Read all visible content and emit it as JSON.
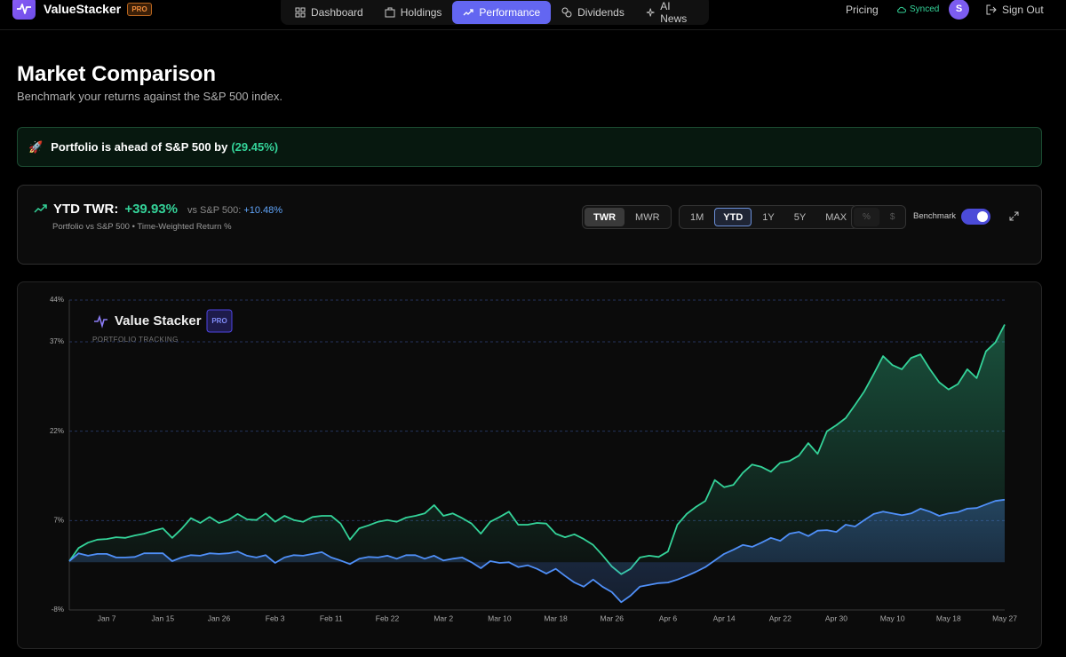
{
  "nav": {
    "brand": "ValueStacker",
    "badge": "PRO",
    "items": [
      "Dashboard",
      "Holdings",
      "Performance",
      "Dividends",
      "AI News"
    ],
    "active": 2,
    "pricing": "Pricing",
    "status": "Synced",
    "avatar": "S",
    "sign_out": "Sign Out"
  },
  "header": {
    "title": "Market Comparison",
    "subtitle": "Benchmark your returns against the S&P 500 index."
  },
  "banner": {
    "icon": "🚀",
    "text": "Portfolio is ahead of S&P 500 by",
    "value": "(29.45%)"
  },
  "summary": {
    "label": "YTD TWR:",
    "value": "+39.93%",
    "compare_label": "vs S&P 500:",
    "compare_value": "+10.48%",
    "caption": "Portfolio vs S&P 500 • Time-Weighted Return %"
  },
  "controls": {
    "method": [
      "TWR",
      "MWR"
    ],
    "method_active": 0,
    "ranges": [
      "1M",
      "YTD",
      "1Y",
      "5Y",
      "MAX"
    ],
    "range_active": 1,
    "units": [
      "%",
      "$"
    ],
    "benchmark": "Benchmark",
    "benchmark_on": true
  },
  "watermark": {
    "title": "Value Stacker",
    "badge": "PRO",
    "subtitle": "PORTFOLIO TRACKING"
  },
  "chart_data": {
    "type": "line",
    "categories": [
      null,
      null,
      null,
      null,
      "Jan 7",
      null,
      null,
      null,
      null,
      null,
      "Jan 15",
      null,
      null,
      null,
      null,
      null,
      "Jan 26",
      null,
      null,
      null,
      null,
      null,
      "Feb 3",
      null,
      null,
      null,
      null,
      null,
      "Feb 11",
      null,
      null,
      null,
      null,
      null,
      "Feb 22",
      null,
      null,
      null,
      null,
      null,
      "Mar 2",
      null,
      null,
      null,
      null,
      null,
      "Mar 10",
      null,
      null,
      null,
      null,
      null,
      "Mar 18",
      null,
      null,
      null,
      null,
      null,
      "Mar 26",
      null,
      null,
      null,
      null,
      null,
      "Apr 6",
      null,
      null,
      null,
      null,
      null,
      "Apr 14",
      null,
      null,
      null,
      null,
      null,
      "Apr 22",
      null,
      null,
      null,
      null,
      null,
      "Apr 30",
      null,
      null,
      null,
      null,
      null,
      "May 10",
      null,
      null,
      null,
      null,
      null,
      "May 18",
      null,
      null,
      null,
      null,
      null,
      "May 27"
    ],
    "series": [
      {
        "color": "#34d399",
        "values": [
          0.2,
          2.4,
          3.3,
          3.8,
          3.9,
          4.2,
          4.1,
          4.5,
          4.8,
          5.3,
          5.7,
          4.1,
          5.6,
          7.4,
          6.6,
          7.6,
          6.6,
          7.1,
          8.1,
          7.2,
          7.1,
          8.2,
          6.8,
          7.8,
          7.1,
          6.8,
          7.6,
          7.8,
          7.8,
          6.5,
          3.8,
          5.7,
          6.2,
          6.8,
          7.1,
          6.8,
          7.5,
          7.8,
          8.2,
          9.6,
          7.8,
          8.2,
          7.4,
          6.5,
          4.8,
          6.8,
          7.6,
          8.5,
          6.3,
          6.3,
          6.6,
          6.5,
          4.8,
          4.2,
          4.7,
          3.9,
          2.9,
          1.2,
          -0.7,
          -2.0,
          -1.1,
          0.8,
          1.1,
          0.9,
          1.8,
          6.3,
          8.1,
          9.3,
          10.3,
          13.8,
          12.6,
          13.0,
          15.0,
          16.4,
          16.0,
          15.2,
          16.7,
          17.0,
          17.9,
          20.0,
          18.2,
          22.0,
          23.0,
          24.2,
          26.4,
          28.7,
          31.6,
          34.6,
          33.1,
          32.4,
          34.3,
          34.9,
          32.4,
          30.2,
          29.0,
          29.9,
          32.4,
          30.9,
          35.4,
          36.9,
          39.9
        ]
      },
      {
        "color": "#4f8ff7",
        "values": [
          0.2,
          1.5,
          1.1,
          1.4,
          1.4,
          0.8,
          0.8,
          0.9,
          1.5,
          1.5,
          1.5,
          0.2,
          0.8,
          1.2,
          1.1,
          1.5,
          1.4,
          1.5,
          1.8,
          1.1,
          0.8,
          1.2,
          -0.1,
          0.8,
          1.2,
          1.1,
          1.4,
          1.7,
          0.8,
          0.3,
          -0.3,
          0.6,
          0.9,
          0.8,
          1.1,
          0.6,
          1.2,
          1.2,
          0.6,
          1.1,
          0.3,
          0.6,
          0.8,
          0.0,
          -1.0,
          0.2,
          -0.1,
          0.0,
          -0.8,
          -0.5,
          -1.1,
          -1.9,
          -1.1,
          -2.3,
          -3.4,
          -4.1,
          -2.9,
          -4.1,
          -5.0,
          -6.7,
          -5.6,
          -4.1,
          -3.8,
          -3.5,
          -3.4,
          -2.9,
          -2.3,
          -1.6,
          -0.8,
          0.3,
          1.4,
          2.1,
          2.9,
          2.6,
          3.3,
          4.1,
          3.6,
          4.8,
          5.1,
          4.4,
          5.3,
          5.4,
          5.1,
          6.3,
          6.0,
          7.1,
          8.1,
          8.5,
          8.2,
          7.9,
          8.2,
          9.0,
          8.5,
          7.8,
          8.2,
          8.4,
          9.0,
          9.1,
          9.7,
          10.3,
          10.5
        ]
      }
    ],
    "ylim": [
      -8,
      44
    ],
    "yticks": [
      {
        "value": -8,
        "label": "-8%"
      },
      {
        "value": 7,
        "label": "7%"
      },
      {
        "value": 22,
        "label": "22%"
      },
      {
        "value": 37,
        "label": "37%"
      },
      {
        "value": 44,
        "label": "44%"
      }
    ],
    "grid": true
  }
}
